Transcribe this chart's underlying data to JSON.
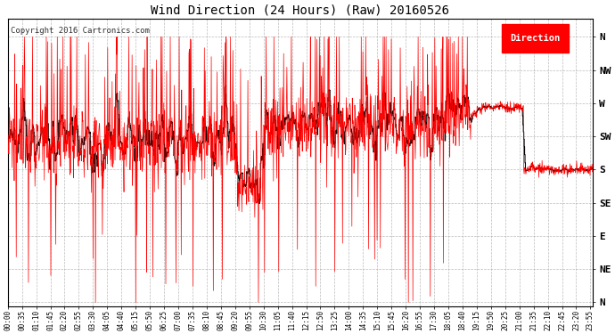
{
  "title": "Wind Direction (24 Hours) (Raw) 20160526",
  "copyright": "Copyright 2016 Cartronics.com",
  "legend_label": "Direction",
  "line_color": "#ff0000",
  "line_color2": "#000000",
  "background_color": "#ffffff",
  "grid_color": "#aaaaaa",
  "ytick_labels": [
    "N",
    "NW",
    "W",
    "SW",
    "S",
    "SE",
    "E",
    "NE",
    "N"
  ],
  "ytick_values": [
    360,
    315,
    270,
    225,
    180,
    135,
    90,
    45,
    0
  ],
  "ylim": [
    -5,
    385
  ],
  "total_minutes": 1440,
  "figsize": [
    6.9,
    3.75
  ],
  "dpi": 100
}
